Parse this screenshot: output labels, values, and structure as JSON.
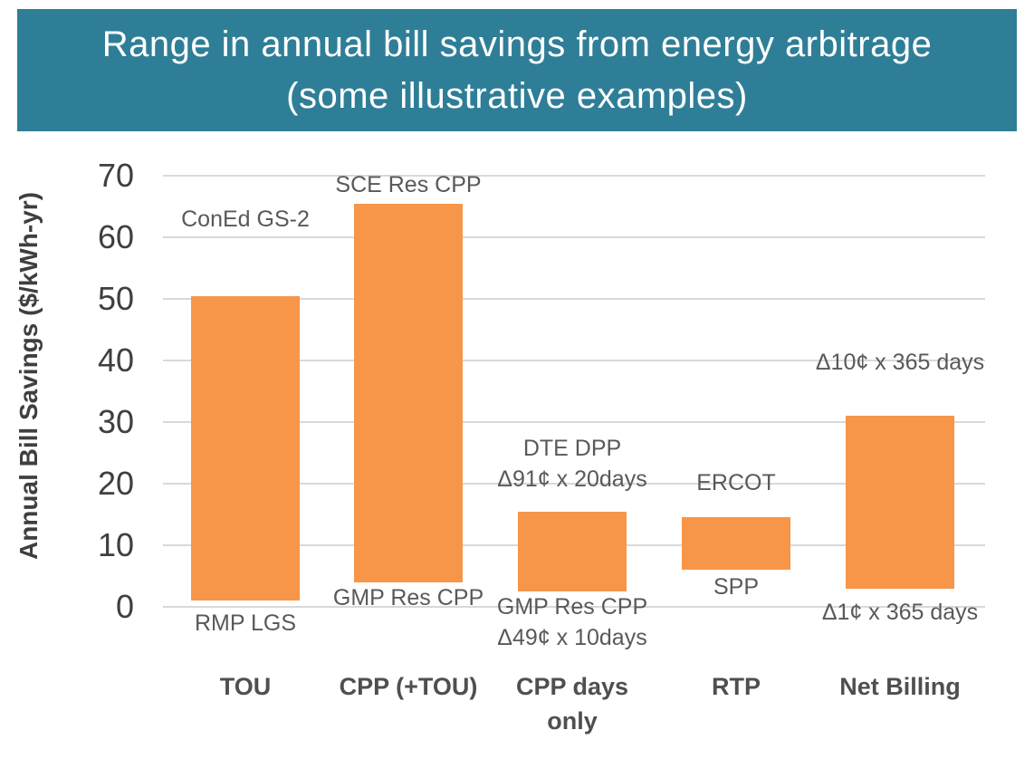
{
  "banner": {
    "title_line1": "Range in annual bill savings from energy arbitrage",
    "title_line2": "(some illustrative examples)",
    "bg_color": "#2F7E97",
    "text_color": "#FFFFFF"
  },
  "colors": {
    "background": "#FFFFFF",
    "bar_fill": "#F79649",
    "gridline": "#D9D9D9",
    "tick_text": "#3F3F3F",
    "axis_title_text": "#3F3F3F",
    "annotation_text": "#595959",
    "category_text": "#4F4F4F"
  },
  "chart_data": {
    "type": "bar",
    "subtype": "floating-range-columns",
    "title": "Range in annual bill savings from energy arbitrage (some illustrative examples)",
    "xlabel": "",
    "ylabel": "Annual Bill Savings ($/kWh-yr)",
    "ylim": [
      0,
      70
    ],
    "yticks": [
      0,
      10,
      20,
      30,
      40,
      50,
      60,
      70
    ],
    "grid": true,
    "legend_position": "none",
    "bar_color": "#F79649",
    "categories": [
      "TOU",
      "CPP (+TOU)",
      "CPP days only",
      "RTP",
      "Net Billing"
    ],
    "bars": [
      {
        "category": "TOU",
        "category_lines": [
          "TOU"
        ],
        "low": 1,
        "high": 50.5,
        "high_label": "ConEd GS-2",
        "high_label_lines": [
          "ConEd GS-2"
        ],
        "low_label": "RMP LGS",
        "low_label_lines": [
          "RMP LGS"
        ]
      },
      {
        "category": "CPP (+TOU)",
        "category_lines": [
          "CPP (+TOU)"
        ],
        "low": 4,
        "high": 65.5,
        "high_label": "SCE Res CPP",
        "high_label_lines": [
          "SCE Res CPP"
        ],
        "low_label": "GMP Res CPP",
        "low_label_lines": [
          "GMP Res CPP"
        ]
      },
      {
        "category": "CPP days only",
        "category_lines": [
          "CPP days",
          "only"
        ],
        "low": 2.5,
        "high": 15.5,
        "high_label": "DTE DPP Δ91¢ x 20days",
        "high_label_lines": [
          "DTE DPP",
          "Δ91¢ x 20days"
        ],
        "low_label": "GMP Res CPP Δ49¢ x 10days",
        "low_label_lines": [
          "GMP Res CPP",
          "Δ49¢ x 10days"
        ]
      },
      {
        "category": "RTP",
        "category_lines": [
          "RTP"
        ],
        "low": 6,
        "high": 14.5,
        "high_label": "ERCOT",
        "high_label_lines": [
          "ERCOT"
        ],
        "low_label": "SPP",
        "low_label_lines": [
          "SPP"
        ]
      },
      {
        "category": "Net Billing",
        "category_lines": [
          "Net Billing"
        ],
        "low": 3,
        "high": 31,
        "high_label": "Δ10¢ x 365 days",
        "high_label_lines": [
          "Δ10¢ x 365 days"
        ],
        "low_label": "Δ1¢ x 365 days",
        "low_label_lines": [
          "Δ1¢ x 365 days"
        ]
      }
    ]
  }
}
